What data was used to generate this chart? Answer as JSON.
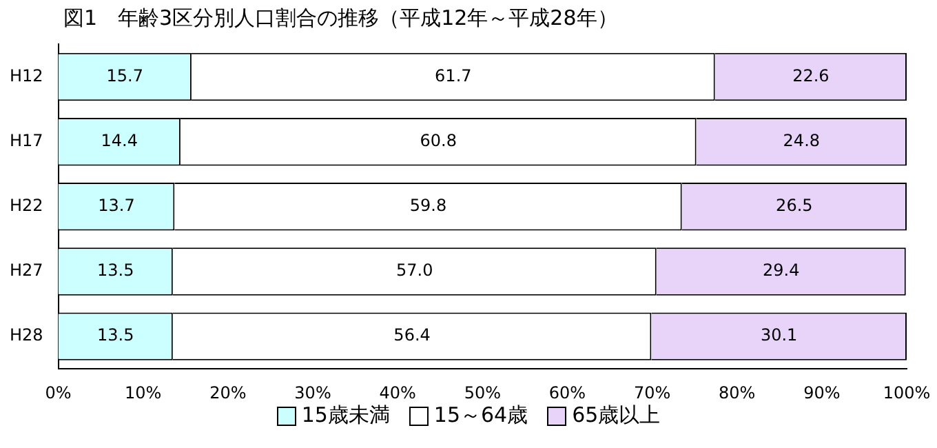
{
  "chart_data": {
    "type": "bar",
    "title": "図1　年齢3区分別人口割合の推移（平成12年～平成28年）",
    "orientation": "horizontal",
    "stacked": true,
    "categories": [
      "H12",
      "H17",
      "H22",
      "H27",
      "H28"
    ],
    "series": [
      {
        "name": "15歳未満",
        "color": "#ccffff",
        "values": [
          15.7,
          14.4,
          13.7,
          13.5,
          13.5
        ]
      },
      {
        "name": "15～64歳",
        "color": "#ffffff",
        "values": [
          61.7,
          60.8,
          59.8,
          57.0,
          56.4
        ],
        "value_labels": [
          "61.7",
          "60.8",
          "59.8",
          "57.0",
          "56.4"
        ]
      },
      {
        "name": "65歳以上",
        "color": "#e8d4f8",
        "values": [
          22.6,
          24.8,
          26.5,
          29.4,
          30.1
        ]
      }
    ],
    "xlim": [
      0,
      100
    ],
    "xticks": [
      {
        "value": 0,
        "label": "0%"
      },
      {
        "value": 10,
        "label": "10%"
      },
      {
        "value": 20,
        "label": "20%"
      },
      {
        "value": 30,
        "label": "30%"
      },
      {
        "value": 40,
        "label": "40%"
      },
      {
        "value": 50,
        "label": "50%"
      },
      {
        "value": 60,
        "label": "60%"
      },
      {
        "value": 70,
        "label": "70%"
      },
      {
        "value": 80,
        "label": "80%"
      },
      {
        "value": 90,
        "label": "90%"
      },
      {
        "value": 100,
        "label": "100%"
      }
    ],
    "data_labels": true,
    "grid": false,
    "legend": "bottom"
  }
}
